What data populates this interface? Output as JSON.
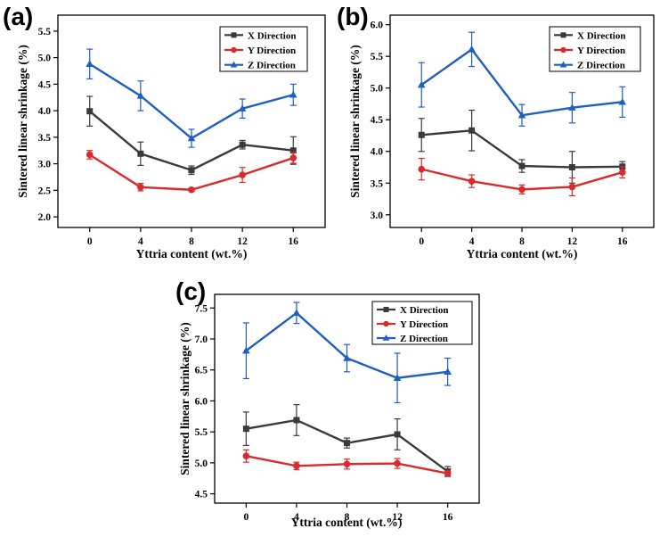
{
  "chart_data": [
    {
      "panel_label": "(a)",
      "type": "line",
      "x": [
        0,
        4,
        8,
        12,
        16
      ],
      "xlabel": "Yttria content (wt.%)",
      "ylabel": "Sintered linear shrinkage (%)",
      "xlim": [
        -2.5,
        18.5
      ],
      "ylim": [
        1.8,
        5.8
      ],
      "yticks": [
        "2.0",
        "2.5",
        "3.0",
        "3.5",
        "4.0",
        "4.5",
        "5.0",
        "5.5"
      ],
      "xticks": [
        "0",
        "4",
        "8",
        "12",
        "16"
      ],
      "legend": "top-right",
      "series": [
        {
          "name": "X Direction",
          "color": "#3a3a3a",
          "marker": "square",
          "values": [
            3.99,
            3.19,
            2.88,
            3.36,
            3.25
          ],
          "errors": [
            0.28,
            0.22,
            0.08,
            0.08,
            0.26
          ]
        },
        {
          "name": "Y Direction",
          "color": "#d92b2b",
          "marker": "circle",
          "values": [
            3.17,
            2.56,
            2.51,
            2.79,
            3.11
          ],
          "errors": [
            0.08,
            0.07,
            0.03,
            0.14,
            0.1
          ]
        },
        {
          "name": "Z Direction",
          "color": "#1f5fbf",
          "marker": "triangle",
          "values": [
            4.88,
            4.28,
            3.48,
            4.04,
            4.3
          ],
          "errors": [
            0.28,
            0.28,
            0.17,
            0.18,
            0.2
          ]
        }
      ]
    },
    {
      "panel_label": "(b)",
      "type": "line",
      "x": [
        0,
        4,
        8,
        12,
        16
      ],
      "xlabel": "Yttria content (wt.%)",
      "ylabel": "Sintered linear shrinkage (%)",
      "xlim": [
        -2.5,
        18.5
      ],
      "ylim": [
        2.8,
        6.15
      ],
      "yticks": [
        "3.0",
        "3.5",
        "4.0",
        "4.5",
        "5.0",
        "5.5",
        "6.0"
      ],
      "xticks": [
        "0",
        "4",
        "8",
        "12",
        "16"
      ],
      "legend": "top-right",
      "series": [
        {
          "name": "X Direction",
          "color": "#3a3a3a",
          "marker": "square",
          "values": [
            4.26,
            4.33,
            3.77,
            3.75,
            3.76
          ],
          "errors": [
            0.26,
            0.32,
            0.1,
            0.25,
            0.08
          ]
        },
        {
          "name": "Y Direction",
          "color": "#d92b2b",
          "marker": "circle",
          "values": [
            3.72,
            3.53,
            3.4,
            3.44,
            3.67
          ],
          "errors": [
            0.17,
            0.1,
            0.07,
            0.14,
            0.09
          ]
        },
        {
          "name": "Z Direction",
          "color": "#1f5fbf",
          "marker": "triangle",
          "values": [
            5.05,
            5.61,
            4.57,
            4.69,
            4.78
          ],
          "errors": [
            0.35,
            0.27,
            0.17,
            0.24,
            0.24
          ]
        }
      ]
    },
    {
      "panel_label": "(c)",
      "type": "line",
      "x": [
        0,
        4,
        8,
        12,
        16
      ],
      "xlabel": "Yttria content (wt.%)",
      "ylabel": "Sintered linear shrinkage (%)",
      "xlim": [
        -2.5,
        18.5
      ],
      "ylim": [
        4.35,
        7.72
      ],
      "yticks": [
        "4.5",
        "5.0",
        "5.5",
        "6.0",
        "6.5",
        "7.0",
        "7.5"
      ],
      "xticks": [
        "0",
        "4",
        "8",
        "12",
        "16"
      ],
      "legend": "top-right",
      "series": [
        {
          "name": "X Direction",
          "color": "#3a3a3a",
          "marker": "square",
          "values": [
            5.55,
            5.69,
            5.32,
            5.46,
            4.86
          ],
          "errors": [
            0.27,
            0.25,
            0.08,
            0.25,
            0.08
          ]
        },
        {
          "name": "Y Direction",
          "color": "#d92b2b",
          "marker": "circle",
          "values": [
            5.11,
            4.95,
            4.98,
            4.99,
            4.83
          ],
          "errors": [
            0.1,
            0.06,
            0.08,
            0.08,
            0.04
          ]
        },
        {
          "name": "Z Direction",
          "color": "#1f5fbf",
          "marker": "triangle",
          "values": [
            6.81,
            7.42,
            6.69,
            6.37,
            6.47
          ],
          "errors": [
            0.45,
            0.17,
            0.22,
            0.4,
            0.22
          ]
        }
      ]
    }
  ]
}
